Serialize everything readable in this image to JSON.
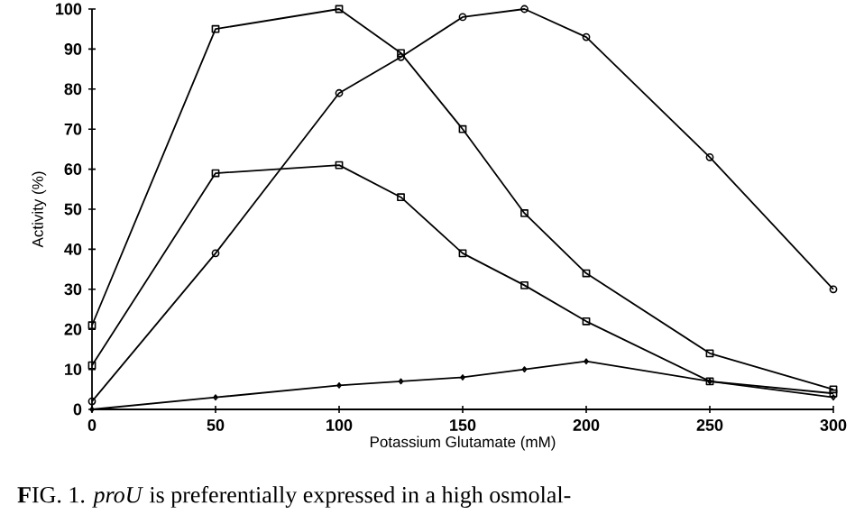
{
  "chart_data": {
    "type": "line",
    "xlabel": "Potassium Glutamate (mM)",
    "ylabel": "Activity (%)",
    "x": [
      0,
      50,
      100,
      125,
      150,
      175,
      200,
      250,
      300
    ],
    "series": [
      {
        "color": "#000000",
        "marker": "square",
        "values": [
          21,
          95,
          100,
          89,
          70,
          49,
          34,
          14,
          5
        ]
      },
      {
        "color": "#000000",
        "marker": "circle",
        "values": [
          2,
          39,
          79,
          88,
          98,
          100,
          93,
          63,
          30
        ]
      },
      {
        "color": "#000000",
        "marker": "square",
        "values": [
          11,
          59,
          61,
          53,
          39,
          31,
          22,
          7,
          4
        ]
      },
      {
        "color": "#000000",
        "marker": "diamond",
        "values": [
          0,
          3,
          6,
          7,
          8,
          10,
          12,
          7,
          3
        ]
      }
    ],
    "xlim": [
      0,
      300
    ],
    "ylim": [
      0,
      100
    ],
    "xticks": [
      0,
      50,
      100,
      150,
      200,
      250,
      300
    ],
    "yticks": [
      0,
      10,
      20,
      30,
      40,
      50,
      60,
      70,
      80,
      90,
      100
    ],
    "line_style": "solid",
    "annotations": [
      "**F**IG. 1. *proU* is preferentially expressed in a high osmolal-"
    ]
  }
}
